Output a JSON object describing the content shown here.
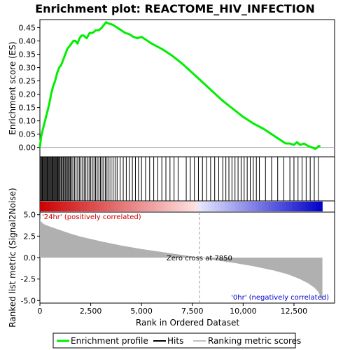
{
  "chart_data": {
    "type": "line",
    "title": "Enrichment plot: REACTOME_HIV_INFECTION",
    "xlabel": "Rank in Ordered Dataset",
    "x_ticks": [
      0,
      2500,
      5000,
      7500,
      10000,
      12500
    ],
    "x_tick_labels": [
      "0",
      "2,500",
      "5,000",
      "7,500",
      "10,000",
      "12,500"
    ],
    "xlim": [
      0,
      14500
    ],
    "n_genes": 13900,
    "es_panel": {
      "ylabel": "Enrichment score (ES)",
      "ylim": [
        -0.035,
        0.48
      ],
      "y_ticks": [
        0.0,
        0.05,
        0.1,
        0.15,
        0.2,
        0.25,
        0.3,
        0.35,
        0.4,
        0.45
      ],
      "y_tick_labels": [
        "0.00",
        "0.05",
        "0.10",
        "0.15",
        "0.20",
        "0.25",
        "0.30",
        "0.35",
        "0.40",
        "0.45"
      ],
      "series": [
        {
          "name": "Enrichment profile",
          "color": "#00ee00",
          "x": [
            0,
            60,
            150,
            250,
            350,
            450,
            550,
            650,
            750,
            850,
            950,
            1050,
            1150,
            1250,
            1350,
            1450,
            1550,
            1650,
            1750,
            1850,
            1950,
            2050,
            2150,
            2300,
            2450,
            2600,
            2750,
            2900,
            3050,
            3150,
            3250,
            3400,
            3600,
            3800,
            4000,
            4200,
            4400,
            4600,
            4800,
            5000,
            5200,
            5500,
            6000,
            6500,
            7000,
            7500,
            8000,
            8500,
            9000,
            9500,
            10000,
            10500,
            11000,
            11300,
            11600,
            11900,
            12100,
            12300,
            12500,
            12650,
            12800,
            13000,
            13200,
            13400,
            13550,
            13650,
            13700,
            13800
          ],
          "y": [
            0.0,
            0.04,
            0.07,
            0.1,
            0.13,
            0.16,
            0.2,
            0.23,
            0.25,
            0.28,
            0.3,
            0.31,
            0.33,
            0.35,
            0.37,
            0.38,
            0.39,
            0.4,
            0.4,
            0.39,
            0.41,
            0.42,
            0.42,
            0.41,
            0.43,
            0.43,
            0.44,
            0.44,
            0.45,
            0.46,
            0.47,
            0.465,
            0.46,
            0.45,
            0.44,
            0.43,
            0.425,
            0.415,
            0.41,
            0.415,
            0.405,
            0.39,
            0.37,
            0.345,
            0.315,
            0.28,
            0.245,
            0.21,
            0.175,
            0.145,
            0.115,
            0.09,
            0.07,
            0.055,
            0.04,
            0.025,
            0.015,
            0.015,
            0.01,
            0.02,
            0.01,
            0.015,
            0.005,
            0.0,
            -0.005,
            0.0,
            0.005,
            0.005
          ]
        }
      ]
    },
    "hits_panel": {
      "series_name": "Hits",
      "hit_ranks": [
        40,
        80,
        120,
        160,
        200,
        240,
        280,
        320,
        360,
        400,
        440,
        480,
        520,
        560,
        600,
        640,
        680,
        720,
        760,
        800,
        840,
        880,
        920,
        960,
        1000,
        1050,
        1100,
        1150,
        1200,
        1250,
        1300,
        1350,
        1400,
        1450,
        1500,
        1550,
        1620,
        1700,
        1780,
        1860,
        1940,
        2020,
        2100,
        2180,
        2260,
        2340,
        2420,
        2500,
        2580,
        2660,
        2740,
        2820,
        2900,
        2980,
        3060,
        3140,
        3220,
        3300,
        3400,
        3500,
        3600,
        3700,
        3800,
        3950,
        4100,
        4250,
        4400,
        4550,
        4700,
        4850,
        5000,
        5200,
        5400,
        5600,
        5800,
        6000,
        6200,
        6400,
        6600,
        6800,
        7200,
        7400,
        7600,
        7800,
        8000,
        8200,
        8400,
        8600,
        8800,
        9000,
        9150,
        9300,
        9450,
        9600,
        9750,
        9900,
        10050,
        10200,
        10350,
        10500,
        10650,
        10800,
        11100,
        11400,
        11700,
        12000,
        12300,
        12500,
        12700,
        12900,
        13100,
        13300,
        13500,
        13700
      ]
    },
    "metric_panel": {
      "ylabel": "Ranked list metric (Signal2Noise)",
      "ylim": [
        -5.3,
        5.3
      ],
      "y_ticks": [
        -5.0,
        -2.5,
        0.0,
        2.5,
        5.0
      ],
      "y_tick_labels": [
        "-5.0",
        "-2.5",
        "0.0",
        "2.5",
        "5.0"
      ],
      "series_name": "Ranking metric scores",
      "x": [
        0,
        50,
        200,
        500,
        1000,
        1500,
        2000,
        3000,
        4000,
        5000,
        6000,
        7000,
        7850,
        8500,
        9500,
        10500,
        11500,
        12200,
        12800,
        13200,
        13500,
        13700,
        13800,
        13900
      ],
      "y": [
        4.5,
        4.2,
        3.9,
        3.6,
        3.2,
        2.8,
        2.45,
        1.9,
        1.4,
        1.0,
        0.65,
        0.3,
        0.0,
        -0.25,
        -0.6,
        -1.0,
        -1.5,
        -1.95,
        -2.5,
        -3.0,
        -3.5,
        -4.0,
        -4.5,
        -5.1
      ],
      "zero_cross_label": "Zero cross at 7850",
      "zero_cross_x": 7850,
      "pos_label": "'24hr' (positively correlated)",
      "neg_label": "'0hr' (negatively correlated)",
      "pos_color": "#cc0000",
      "neg_color": "#0000cc"
    },
    "legend": {
      "placement": "bottom",
      "entries": [
        {
          "label": "Enrichment profile",
          "color": "#00ee00"
        },
        {
          "label": "Hits",
          "color": "#000000"
        },
        {
          "label": "Ranking metric scores",
          "color": "#c0c0c0"
        }
      ]
    }
  }
}
